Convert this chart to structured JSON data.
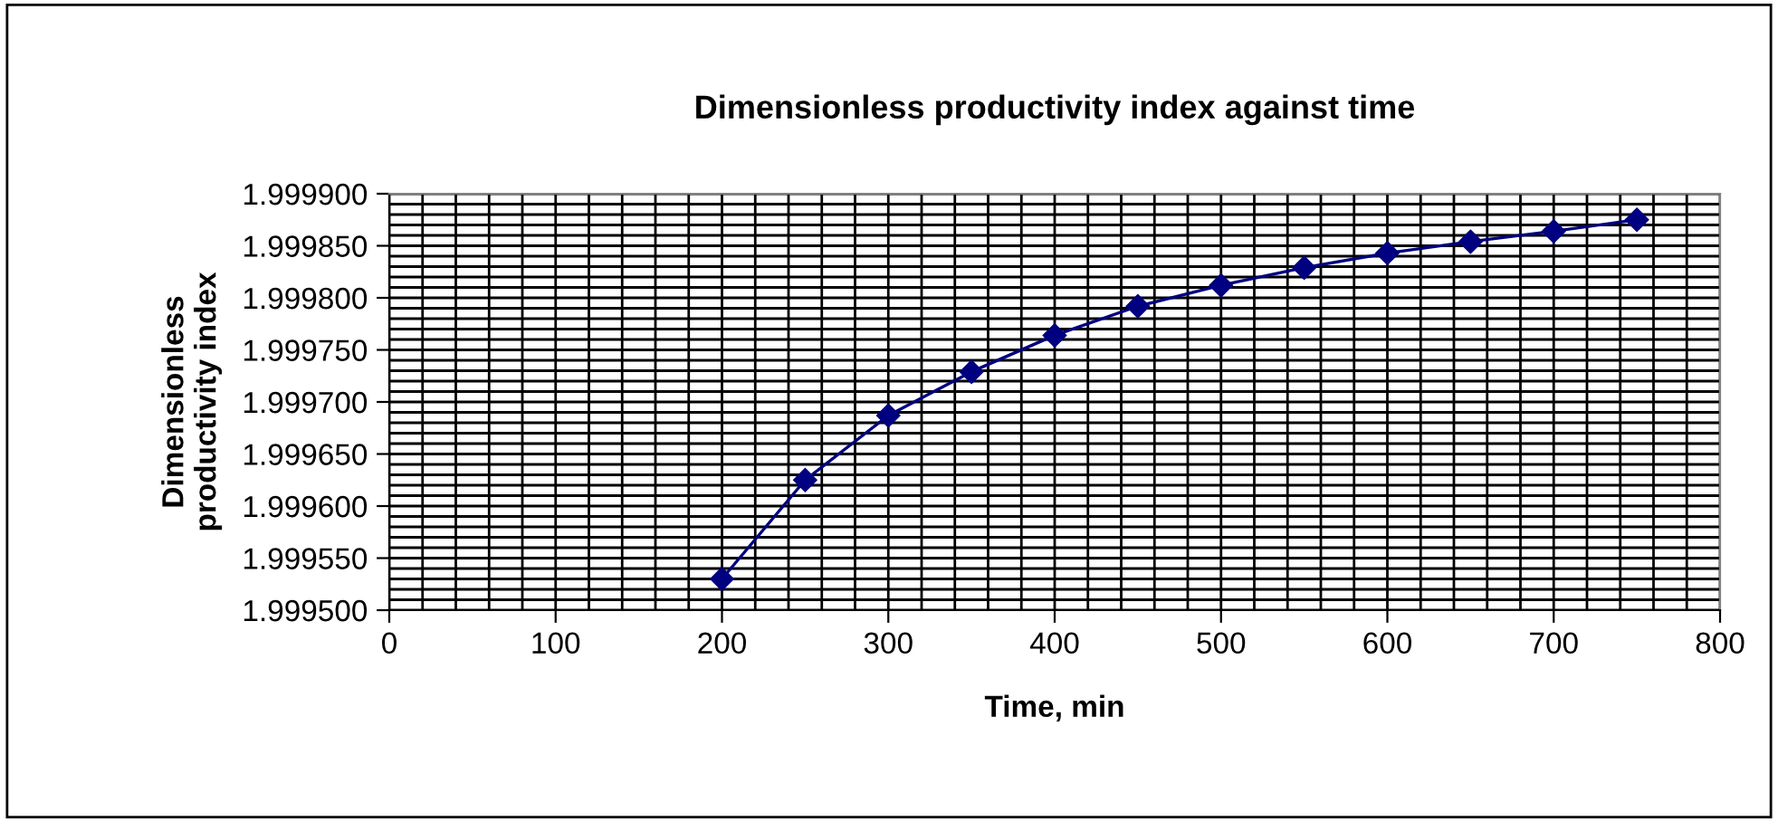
{
  "chart_data": {
    "type": "line",
    "title": "Dimensionless productivity index against time",
    "xlabel": "Time, min",
    "ylabel": "Dimensionless\nproductivity index",
    "x": [
      200,
      250,
      300,
      350,
      400,
      450,
      500,
      550,
      600,
      650,
      700,
      750
    ],
    "series": [
      {
        "color": "#000080",
        "values": [
          1.99953,
          1.999625,
          1.999687,
          1.999729,
          1.999764,
          1.999792,
          1.999812,
          1.999829,
          1.999843,
          1.999854,
          1.999864,
          1.999875
        ]
      }
    ],
    "xlim": [
      0,
      800
    ],
    "xticks": [
      0,
      100,
      200,
      300,
      400,
      500,
      600,
      700,
      800
    ],
    "ylim": [
      1.9995,
      1.9999
    ],
    "yticks": [
      {
        "value": 1.9995,
        "label": "1.999500"
      },
      {
        "value": 1.99955,
        "label": "1.999550"
      },
      {
        "value": 1.9996,
        "label": "1.999600"
      },
      {
        "value": 1.99965,
        "label": "1.999650"
      },
      {
        "value": 1.9997,
        "label": "1.999700"
      },
      {
        "value": 1.99975,
        "label": "1.999750"
      },
      {
        "value": 1.9998,
        "label": "1.999800"
      },
      {
        "value": 1.99985,
        "label": "1.999850"
      },
      {
        "value": 1.9999,
        "label": "1.999900"
      }
    ],
    "grid": true,
    "marker": "diamond",
    "line_style": "solid"
  }
}
